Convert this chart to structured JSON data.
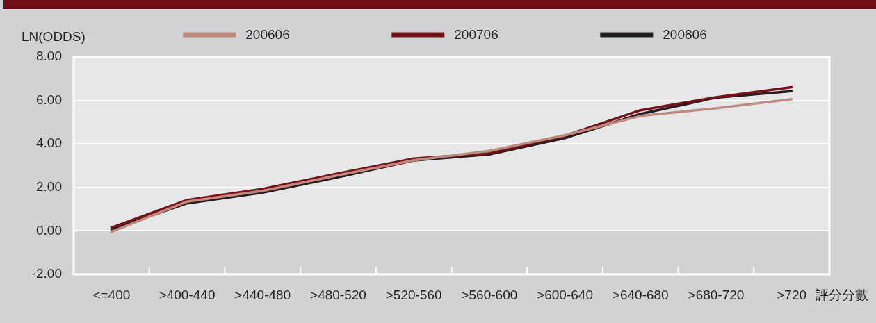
{
  "chart_data": {
    "type": "line",
    "xlabel": "評分分數",
    "ylabel": "LN(ODDS)",
    "categories": [
      "<=400",
      ">400-440",
      ">440-480",
      ">480-520",
      ">520-560",
      ">560-600",
      ">600-640",
      ">640-680",
      ">680-720",
      ">720"
    ],
    "series": [
      {
        "name": "200606",
        "color": "#c0897e",
        "values": [
          -0.04,
          1.35,
          1.84,
          2.56,
          3.25,
          3.68,
          4.4,
          5.29,
          5.64,
          6.06
        ]
      },
      {
        "name": "200706",
        "color": "#7b0e16",
        "values": [
          0.15,
          1.42,
          1.93,
          2.64,
          3.33,
          3.57,
          4.38,
          5.55,
          6.15,
          6.61
        ]
      },
      {
        "name": "200806",
        "color": "#231f20",
        "values": [
          0.07,
          1.27,
          1.76,
          2.47,
          3.24,
          3.52,
          4.27,
          5.38,
          6.13,
          6.43
        ]
      }
    ],
    "ylim": [
      -2,
      8
    ],
    "yticks": [
      {
        "value": -2,
        "label": "-2.00"
      },
      {
        "value": 0,
        "label": "0.00"
      },
      {
        "value": 2,
        "label": "2.00"
      },
      {
        "value": 4,
        "label": "4.00"
      },
      {
        "value": 6,
        "label": "6.00"
      },
      {
        "value": 8,
        "label": "8.00"
      }
    ],
    "bands": [
      {
        "axis": "y",
        "from": 0,
        "to": 8,
        "color": "#e6e7e9"
      }
    ],
    "grid": "y",
    "legend": "top",
    "marker": "none",
    "line_style": "solid"
  }
}
